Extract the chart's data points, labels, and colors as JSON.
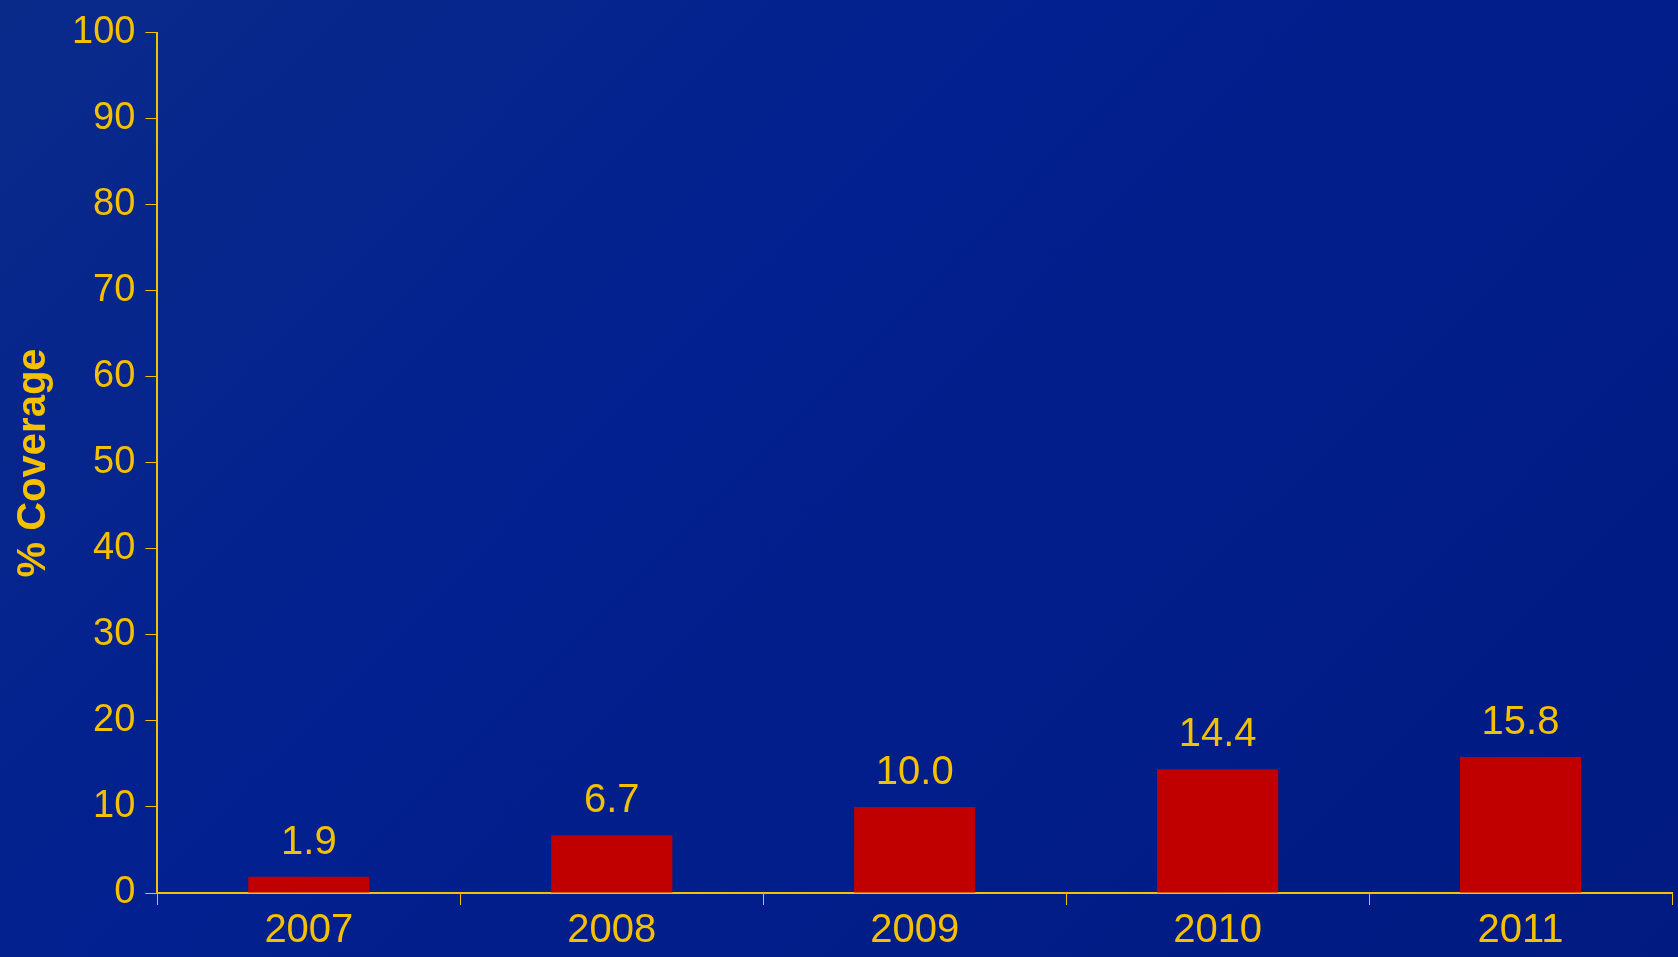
{
  "chart_data": {
    "type": "bar",
    "ylabel": "% Coverage",
    "categories": [
      "2007",
      "2008",
      "2009",
      "2010",
      "2011"
    ],
    "values": [
      1.9,
      6.7,
      10.0,
      14.4,
      15.8
    ],
    "value_labels": [
      "1.9",
      "6.7",
      "10.0",
      "14.4",
      "15.8"
    ],
    "color": "#c00000",
    "ylim": [
      0,
      100
    ],
    "yticks": [
      0,
      10,
      20,
      30,
      40,
      50,
      60,
      70,
      80,
      90,
      100
    ],
    "grid": false,
    "legend": false
  }
}
